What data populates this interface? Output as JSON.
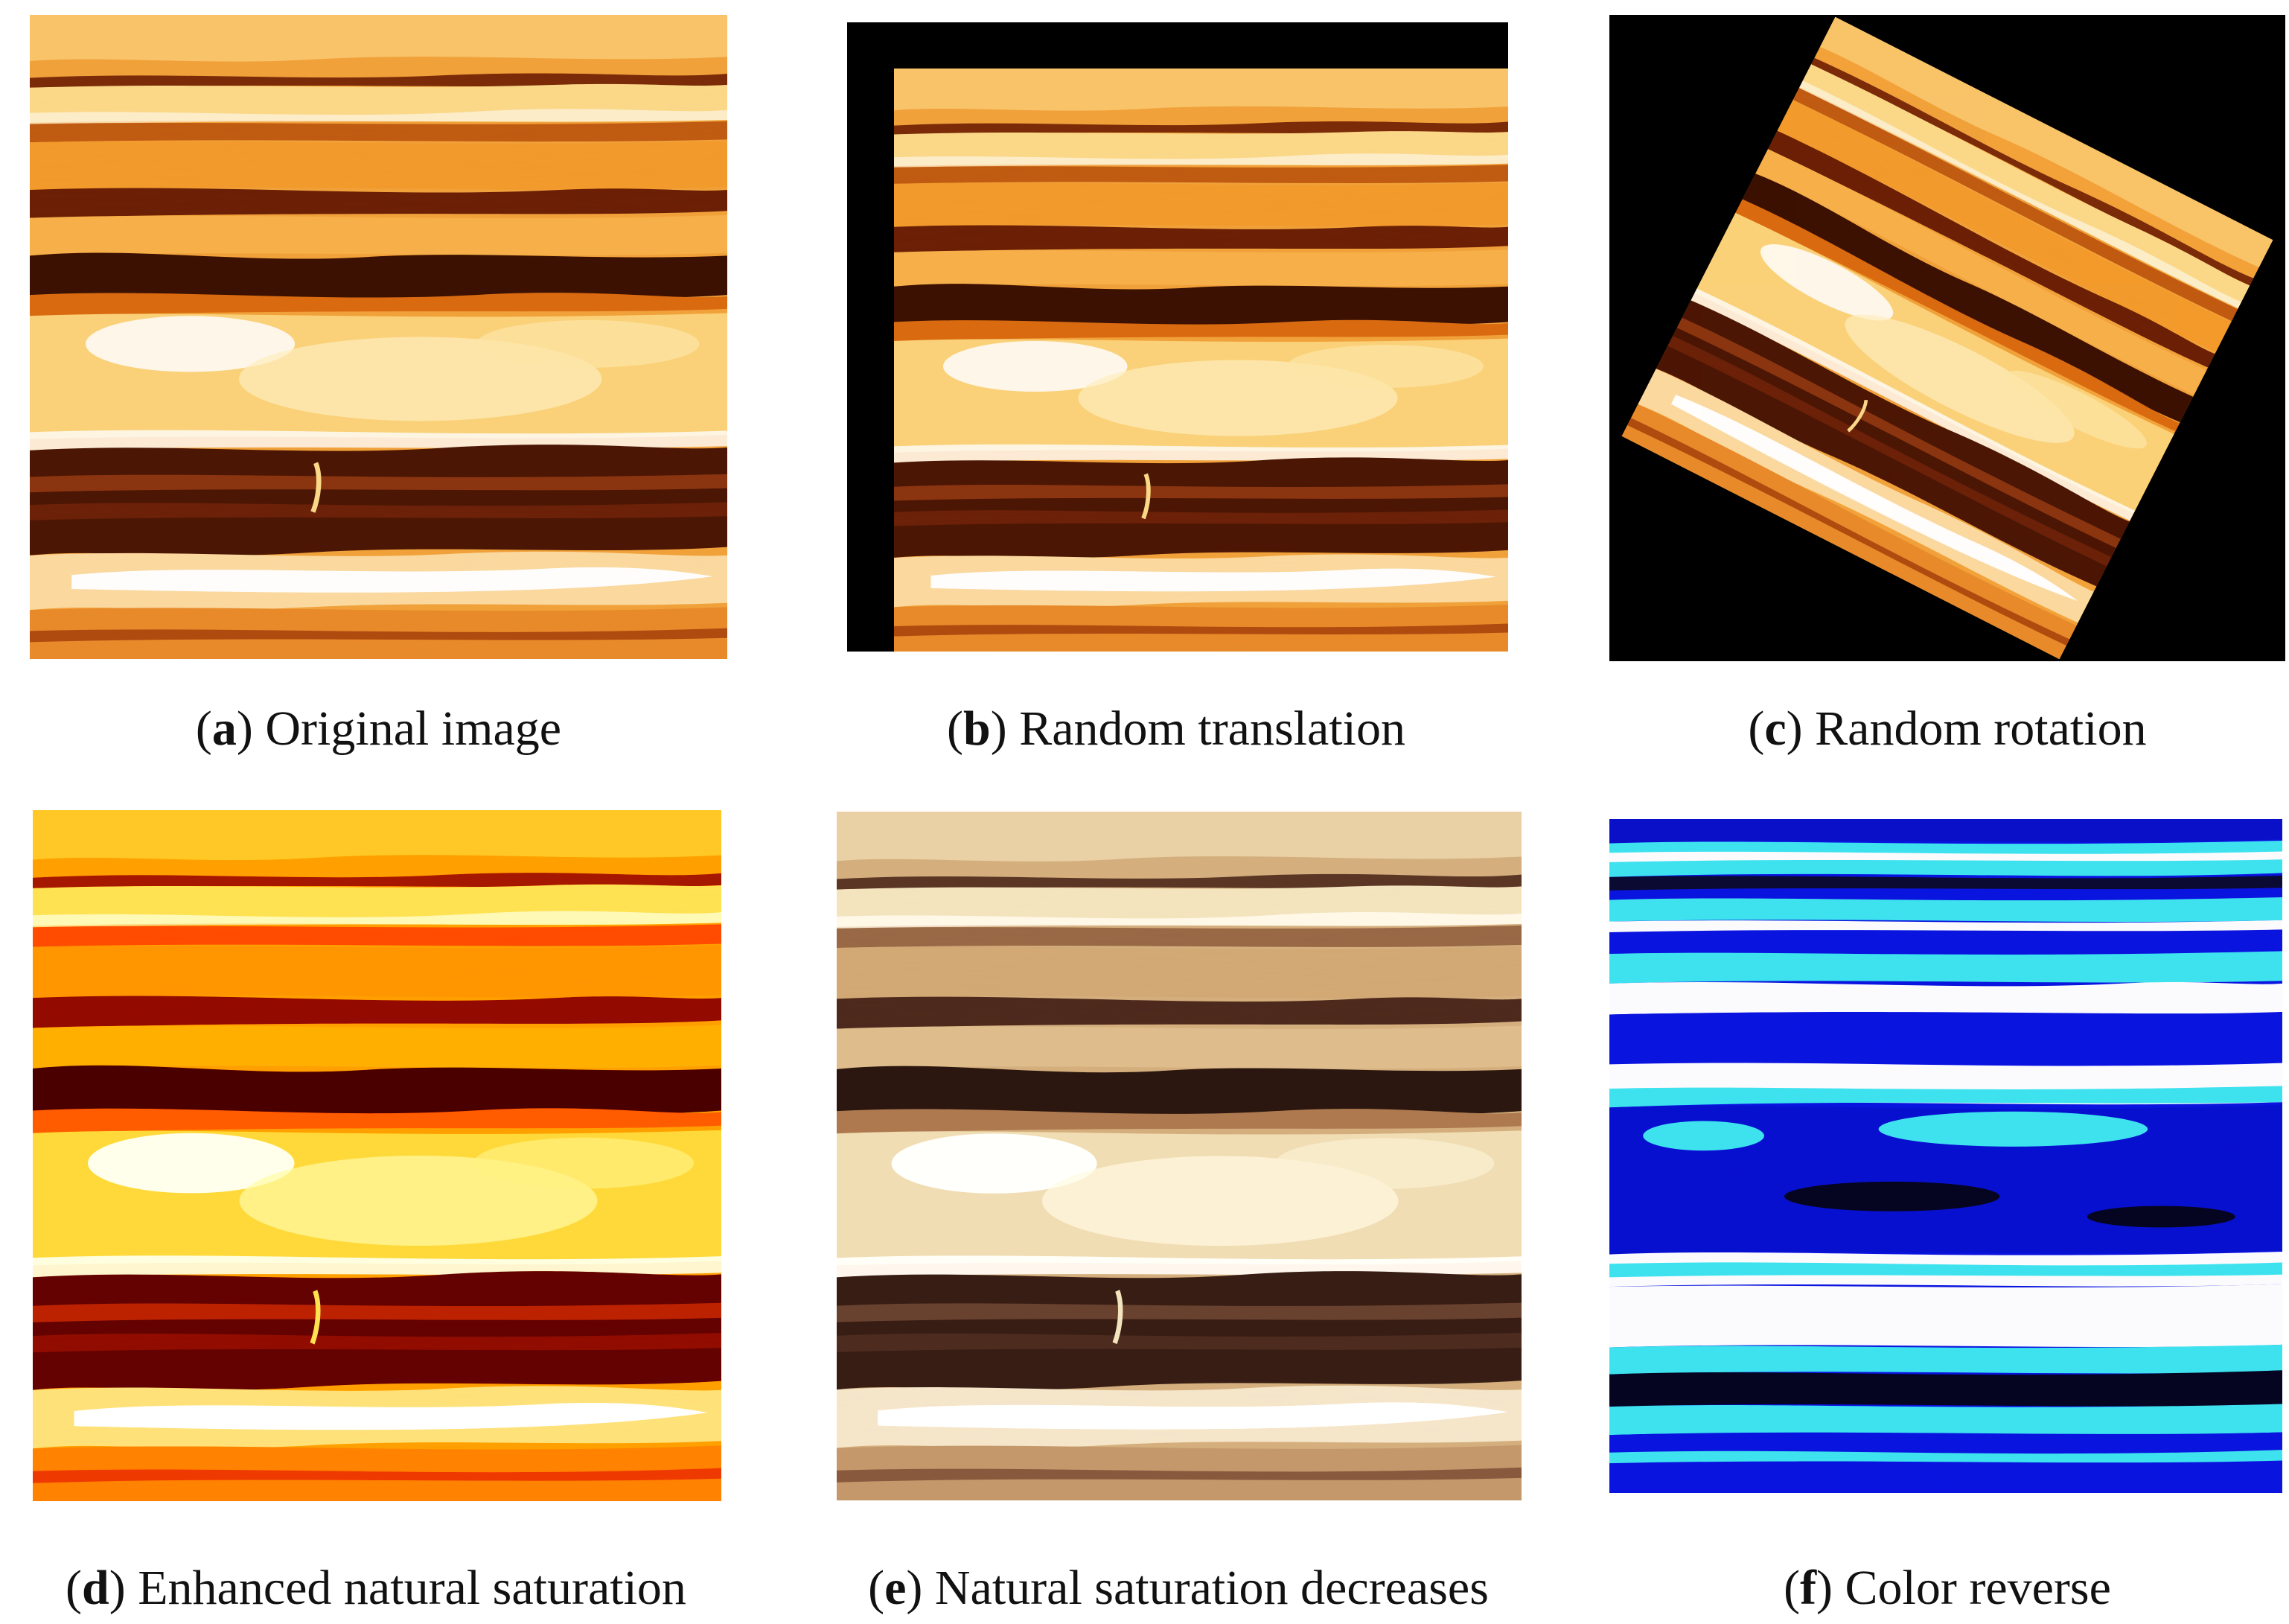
{
  "panels": [
    {
      "letter": "a",
      "caption": "Original image"
    },
    {
      "letter": "b",
      "caption": "Random translation"
    },
    {
      "letter": "c",
      "caption": "Random rotation"
    },
    {
      "letter": "d",
      "caption": "Enhanced natural saturation"
    },
    {
      "letter": "e",
      "caption": "Natural saturation decreases"
    },
    {
      "letter": "f",
      "caption": "Color reverse"
    }
  ],
  "colors": {
    "background": "#ffffff",
    "padding_black": "#000000",
    "seismic_light": "#fff2c8",
    "seismic_mid": "#f08a14",
    "seismic_dark": "#3a0f02",
    "reverse_blue": "#0a14e0",
    "reverse_cyan": "#3fe6f0"
  }
}
